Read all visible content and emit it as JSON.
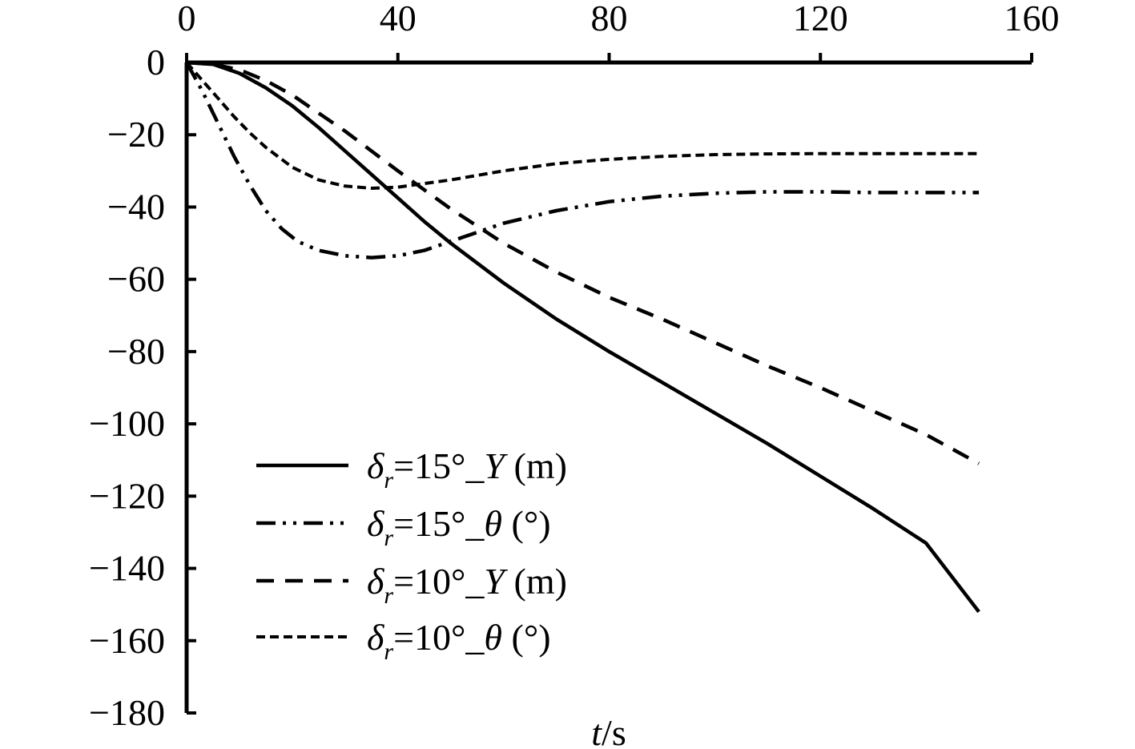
{
  "chart_data": {
    "type": "line",
    "xlabel_var": "t",
    "xlabel_unit": "/s",
    "x_ticks": [
      0,
      40,
      80,
      120,
      160
    ],
    "y_ticks": [
      0,
      -20,
      -40,
      -60,
      -80,
      -100,
      -120,
      -140,
      -160,
      -180
    ],
    "x_tick_labels": [
      "0",
      "40",
      "80",
      "120",
      "160"
    ],
    "y_tick_labels": [
      "0",
      "−20",
      "−40",
      "−60",
      "−80",
      "−100",
      "−120",
      "−140",
      "−160",
      "−180"
    ],
    "xlim": [
      0,
      160
    ],
    "ylim": [
      -180,
      0
    ],
    "x_axis_position": "top",
    "grid": false,
    "legend_position": "bottom-left",
    "series": [
      {
        "name": "δr=15°_Y (m)",
        "legend": {
          "sym": "δ",
          "sub": "r",
          "mid": "=15°_",
          "var": "Y",
          "unit": " (m)"
        },
        "style": "solid",
        "x": [
          0,
          5,
          10,
          15,
          20,
          25,
          30,
          35,
          40,
          45,
          50,
          60,
          70,
          80,
          90,
          100,
          110,
          120,
          130,
          140,
          150
        ],
        "y": [
          0,
          -0.5,
          -3,
          -7,
          -12,
          -18,
          -24.5,
          -31,
          -37.5,
          -44,
          -50,
          -61,
          -71,
          -80,
          -88.5,
          -97,
          -105.5,
          -114.5,
          -123.5,
          -133,
          -152
        ]
      },
      {
        "name": "δr=15°_θ (°)",
        "legend": {
          "sym": "δ",
          "sub": "r",
          "mid": "=15°_",
          "var": "θ",
          "unit": " (°)"
        },
        "style": "dash-dot-dot",
        "x": [
          0,
          3,
          6,
          9,
          12,
          15,
          18,
          21,
          25,
          30,
          35,
          40,
          45,
          50,
          55,
          60,
          70,
          80,
          90,
          100,
          110,
          120,
          130,
          140,
          150
        ],
        "y": [
          0,
          -8,
          -17,
          -26,
          -34,
          -41,
          -46,
          -49.5,
          -52,
          -53.5,
          -54,
          -53.5,
          -52,
          -49.5,
          -47,
          -44.5,
          -41,
          -38.5,
          -37,
          -36.2,
          -35.8,
          -35.8,
          -36,
          -36,
          -36
        ]
      },
      {
        "name": "δr=10°_Y (m)",
        "legend": {
          "sym": "δ",
          "sub": "r",
          "mid": "=10°_",
          "var": "Y",
          "unit": " (m)"
        },
        "style": "dashed",
        "x": [
          0,
          5,
          10,
          15,
          20,
          25,
          30,
          35,
          40,
          50,
          60,
          70,
          80,
          90,
          100,
          110,
          120,
          130,
          140,
          150
        ],
        "y": [
          0,
          -0.5,
          -2,
          -5,
          -9,
          -14,
          -19,
          -24.5,
          -30,
          -40.5,
          -50,
          -58,
          -65,
          -71,
          -77.5,
          -84,
          -90,
          -96.5,
          -103,
          -111
        ]
      },
      {
        "name": "δr=10°_θ (°)",
        "legend": {
          "sym": "δ",
          "sub": "r",
          "mid": "=10°_",
          "var": "θ",
          "unit": " (°)"
        },
        "style": "short-dashed",
        "x": [
          0,
          3,
          6,
          9,
          12,
          15,
          20,
          25,
          30,
          35,
          40,
          50,
          60,
          70,
          80,
          90,
          100,
          110,
          120,
          130,
          140,
          150
        ],
        "y": [
          0,
          -5,
          -10,
          -15,
          -19.5,
          -23.5,
          -29,
          -32.5,
          -34.2,
          -34.8,
          -34.5,
          -32.5,
          -30,
          -28,
          -26.8,
          -26,
          -25.5,
          -25.3,
          -25.2,
          -25.2,
          -25.2,
          -25.2
        ]
      }
    ]
  }
}
